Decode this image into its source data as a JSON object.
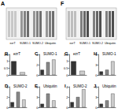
{
  "blots": [
    {
      "label": "A",
      "groups": [
        "ezrT",
        "SUMO-1",
        "SUMO-2",
        "Ubiquitin"
      ]
    },
    {
      "label": "F",
      "groups": [
        "ezrT",
        "SUMO-1",
        "SUMO-2",
        "Ubiquitin"
      ]
    }
  ],
  "chart_data": [
    {
      "type": "bar",
      "label": "B",
      "title": "ezrT",
      "categories": [
        null,
        null
      ],
      "values": [
        1,
        0.2
      ],
      "colors": [
        "#333333",
        "#cccccc"
      ],
      "ylim": [
        0,
        1.5
      ],
      "yticks": [
        0,
        0.5,
        1,
        1.5
      ],
      "grid": false,
      "tick_labels": "y"
    },
    {
      "type": "bar",
      "label": "C",
      "title": "SUMO-1",
      "categories": [
        null,
        null,
        null
      ],
      "values": [
        1,
        2.5,
        3
      ],
      "colors": [
        "#333333",
        "#888888",
        "#cccccc"
      ],
      "ylim": [
        0,
        4
      ],
      "yticks": [
        0,
        2,
        4
      ],
      "grid": false,
      "tick_labels": "y"
    },
    {
      "type": "bar",
      "label": "D",
      "title": "SUMO-2",
      "categories": [
        null,
        null,
        null
      ],
      "values": [
        1,
        3,
        1.5
      ],
      "colors": [
        "#333333",
        "#888888",
        "#cccccc"
      ],
      "ylim": [
        0,
        4
      ],
      "yticks": [
        0,
        2,
        4
      ],
      "grid": false,
      "tick_labels": "y"
    },
    {
      "type": "bar",
      "label": "E",
      "title": "Ubiquitin",
      "categories": [
        null,
        null,
        null
      ],
      "values": [
        1,
        4,
        2
      ],
      "colors": [
        "#333333",
        "#888888",
        "#cccccc"
      ],
      "ylim": [
        0,
        6
      ],
      "yticks": [
        0,
        3,
        6
      ],
      "grid": false,
      "tick_labels": "y"
    },
    {
      "type": "bar",
      "label": "G",
      "title": "ezrT",
      "categories": [
        null,
        null
      ],
      "values": [
        1,
        0.3
      ],
      "colors": [
        "#333333",
        "#cccccc"
      ],
      "ylim": [
        0,
        1.5
      ],
      "yticks": [
        0,
        0.5,
        1,
        1.5
      ],
      "grid": false,
      "tick_labels": "y"
    },
    {
      "type": "bar",
      "label": "H",
      "title": "SUMO-1",
      "categories": [
        null,
        null,
        null
      ],
      "values": [
        1,
        1.5,
        4
      ],
      "colors": [
        "#333333",
        "#888888",
        "#cccccc"
      ],
      "ylim": [
        0,
        6
      ],
      "yticks": [
        0,
        3,
        6
      ],
      "grid": false,
      "tick_labels": "y"
    },
    {
      "type": "bar",
      "label": "I",
      "title": "SUMO-2",
      "categories": [
        null,
        null,
        null
      ],
      "values": [
        1,
        2,
        3.5
      ],
      "colors": [
        "#333333",
        "#888888",
        "#cccccc"
      ],
      "ylim": [
        0,
        4
      ],
      "yticks": [
        0,
        2,
        4
      ],
      "grid": false,
      "tick_labels": "y"
    },
    {
      "type": "bar",
      "label": "J",
      "title": "Ubiquitin",
      "categories": [
        null,
        null,
        null
      ],
      "values": [
        1,
        2,
        4
      ],
      "colors": [
        "#333333",
        "#888888",
        "#cccccc"
      ],
      "ylim": [
        0,
        6
      ],
      "yticks": [
        0,
        3,
        6
      ],
      "grid": false,
      "tick_labels": "y"
    }
  ]
}
